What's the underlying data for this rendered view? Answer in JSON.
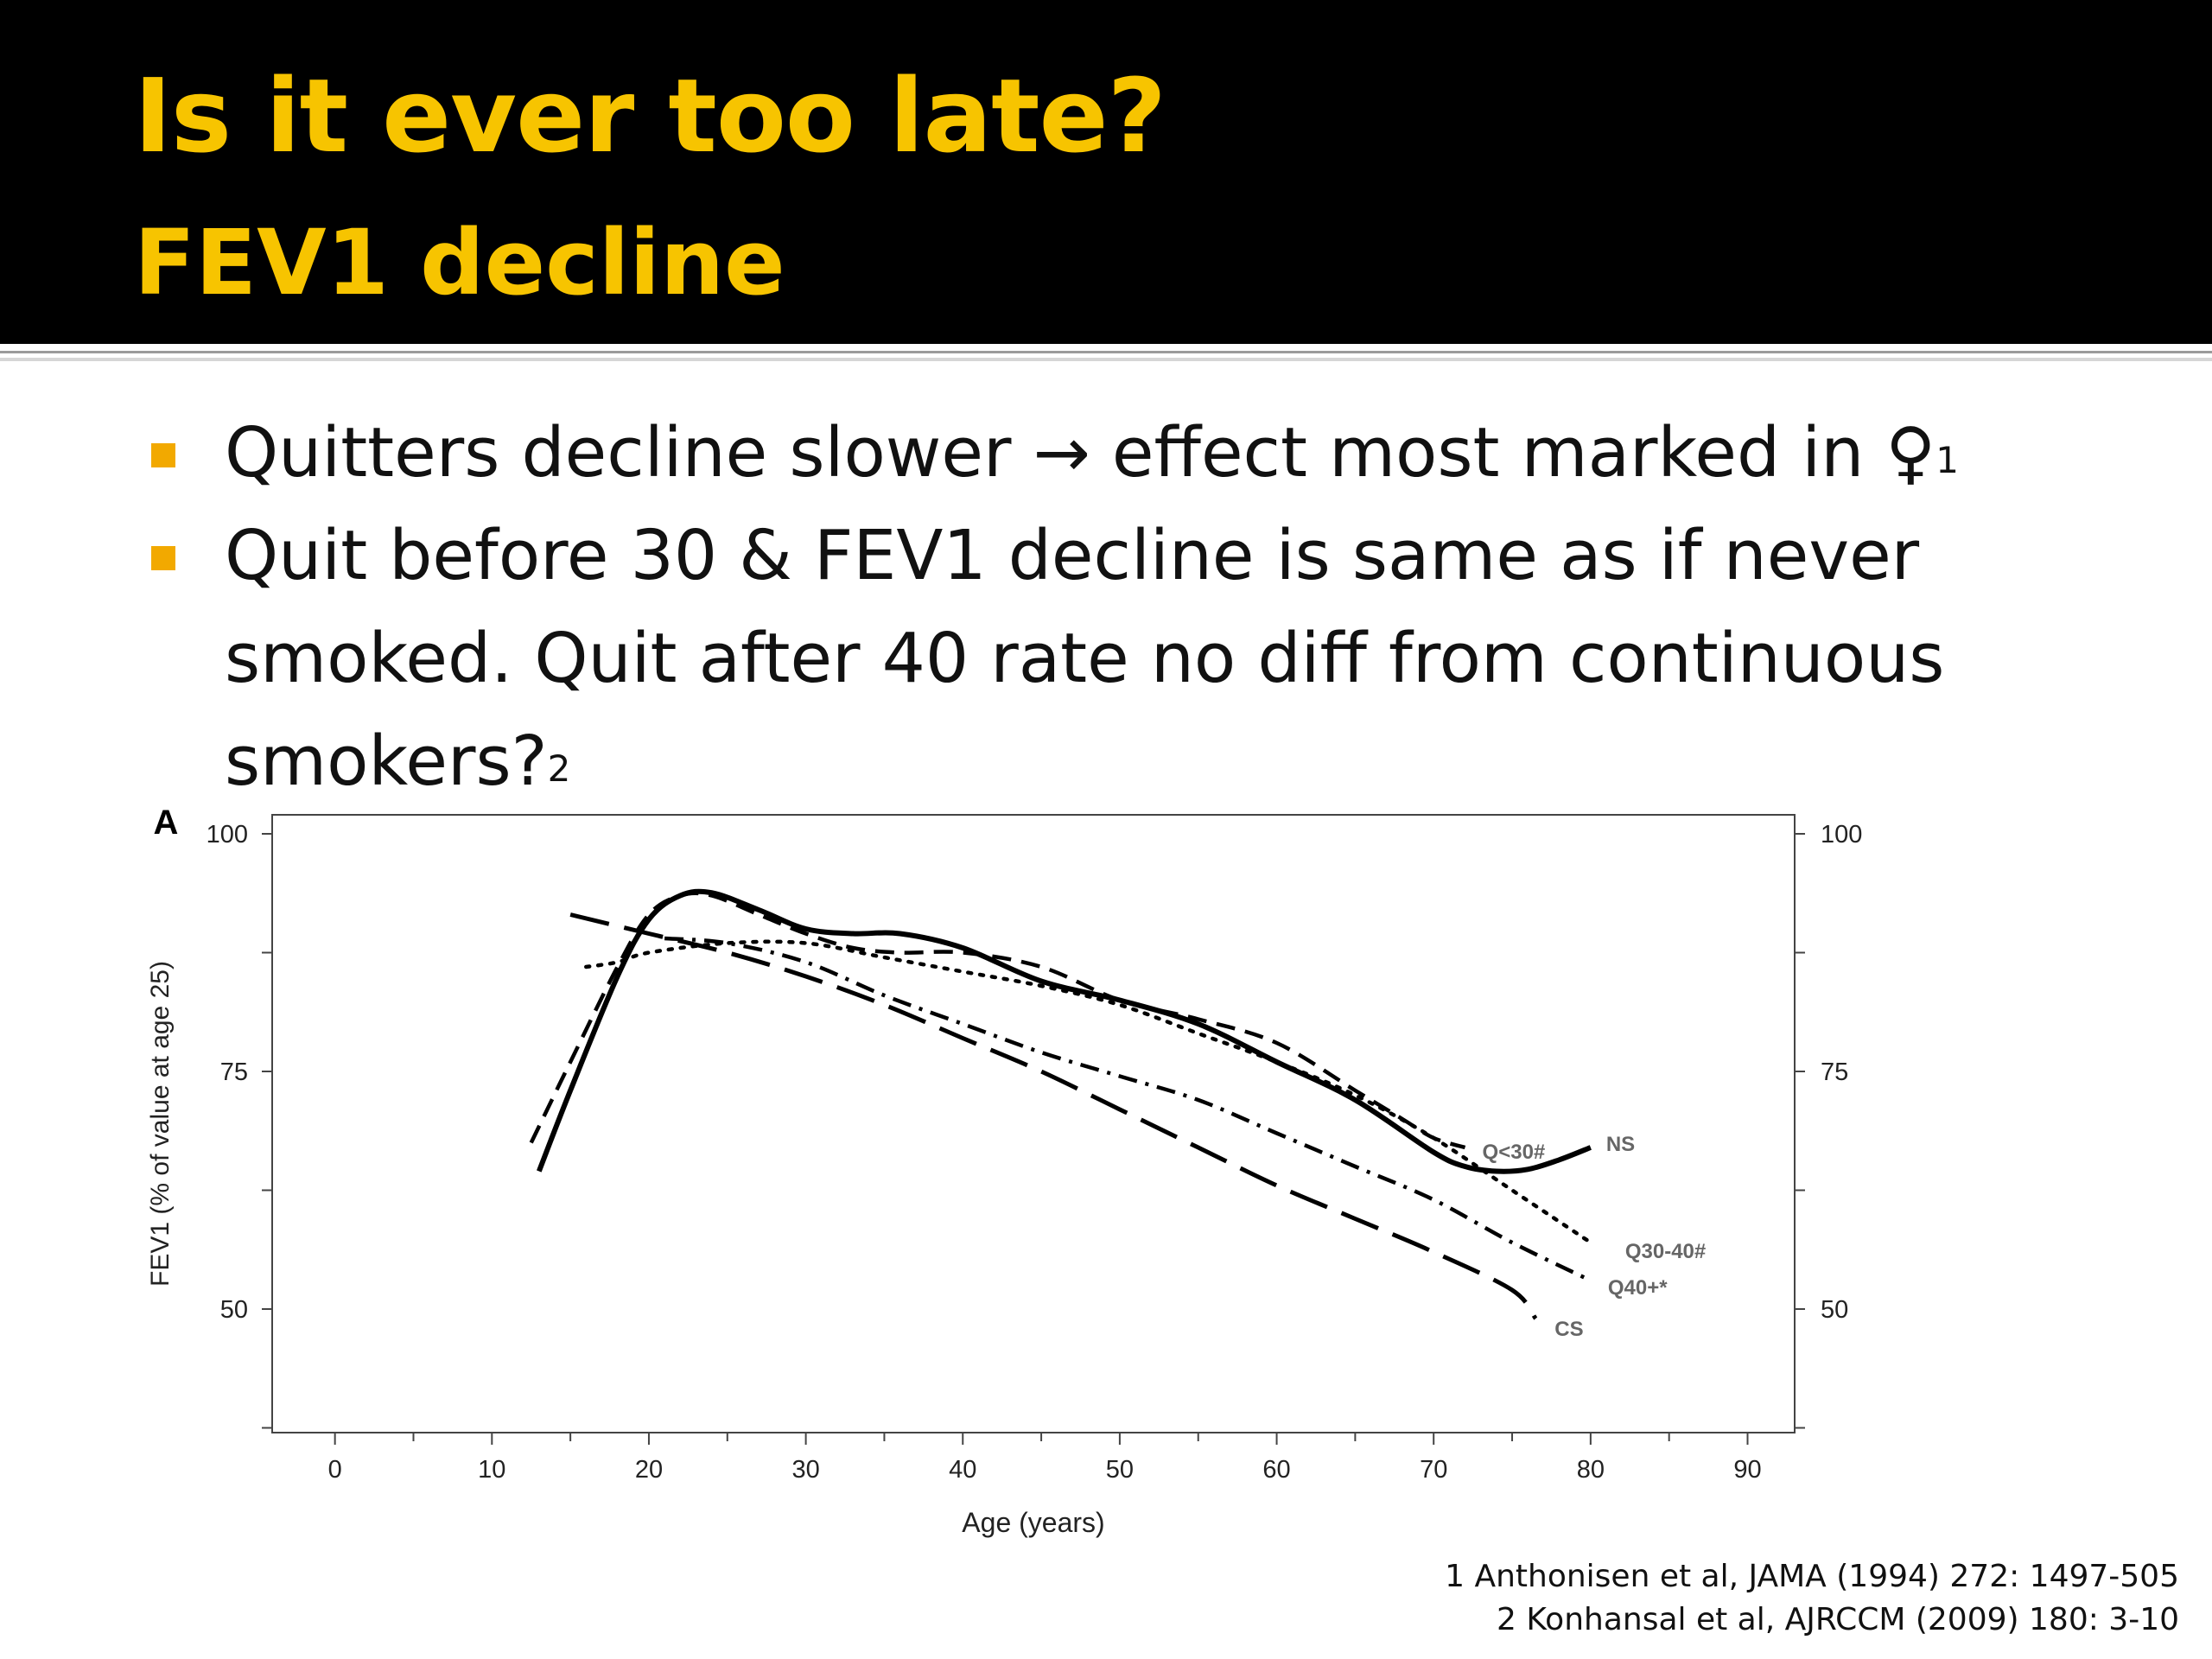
{
  "slide": {
    "title": "Is it ever too late?",
    "subtitle": "FEV1 decline",
    "bullets": [
      {
        "text": "Quitters decline slower → effect most marked in ♀",
        "ref": "1"
      },
      {
        "text": "Quit before 30 & FEV1 decline is same as if never smoked. Quit after 40 rate no diff from continuous smokers?",
        "ref": "2"
      }
    ],
    "references": [
      "1 Anthonisen et al, JAMA (1994) 272: 1497-505",
      "2 Konhansal et al, AJRCCM (2009) 180: 3-10"
    ],
    "colors": {
      "header_bg": "#000000",
      "title": "#f7c400",
      "bullet": "#f2a900"
    }
  },
  "chart_data": {
    "type": "line",
    "panel_label": "A",
    "xlabel": "Age (years)",
    "ylabel": "FEV1 (% of value at age 25)",
    "xlim": [
      -4,
      93
    ],
    "ylim": [
      37,
      102
    ],
    "x_ticks": [
      0,
      10,
      20,
      30,
      40,
      50,
      60,
      70,
      80,
      90
    ],
    "y_ticks": [
      50,
      75,
      100
    ],
    "grid": false,
    "series": [
      {
        "name": "NS",
        "style": "solid",
        "x": [
          13,
          15,
          18,
          20,
          22,
          24,
          27,
          30,
          33,
          36,
          40,
          45,
          50,
          55,
          60,
          65,
          70,
          72,
          74,
          76,
          78,
          80
        ],
        "y": [
          64.5,
          73,
          85,
          91,
          93.5,
          93.8,
          92,
          90,
          89.5,
          89.5,
          88,
          84.5,
          82.5,
          80,
          76,
          72,
          66.5,
          65,
          64.5,
          64.7,
          65.7,
          67
        ]
      },
      {
        "name": "Q<30#",
        "style": "short-dash",
        "x": [
          12.5,
          15,
          18,
          20,
          22,
          24,
          27,
          30,
          33,
          36,
          40,
          45,
          50,
          55,
          60,
          65,
          68,
          70,
          72
        ],
        "y": [
          67.5,
          76,
          86,
          91.5,
          93.5,
          93.5,
          91.5,
          89.5,
          88,
          87.5,
          87.5,
          86,
          82.5,
          80.5,
          78,
          73,
          70,
          68,
          67
        ]
      },
      {
        "name": "Q30-40#",
        "style": "dotted",
        "x": [
          16,
          18,
          20,
          25,
          30,
          35,
          40,
          45,
          50,
          55,
          60,
          65,
          70,
          75,
          80
        ],
        "y": [
          86,
          86.5,
          87.5,
          88.5,
          88.5,
          87,
          85.5,
          84,
          82,
          79,
          76,
          72.5,
          68,
          62.5,
          57
        ]
      },
      {
        "name": "Q40+*",
        "style": "dash-dot",
        "x": [
          21,
          25,
          30,
          35,
          40,
          45,
          50,
          55,
          60,
          65,
          70,
          75,
          80
        ],
        "y": [
          89,
          88.5,
          86.5,
          83,
          80,
          77,
          74.5,
          72,
          68.5,
          65,
          61.5,
          57,
          53
        ]
      },
      {
        "name": "CS",
        "style": "long-dash",
        "x": [
          15,
          20,
          25,
          30,
          35,
          40,
          45,
          50,
          55,
          60,
          65,
          70,
          75,
          76.5
        ],
        "y": [
          91.5,
          89.5,
          87.5,
          85,
          82,
          78.5,
          75,
          71,
          67,
          63,
          59.5,
          56,
          52,
          49
        ]
      }
    ],
    "labels": [
      {
        "text": "Q<30#",
        "series": "Q<30#"
      },
      {
        "text": "NS",
        "series": "NS"
      },
      {
        "text": "Q30-40#",
        "series": "Q30-40#"
      },
      {
        "text": "Q40+*",
        "series": "Q40+*"
      },
      {
        "text": "CS",
        "series": "CS"
      }
    ]
  }
}
